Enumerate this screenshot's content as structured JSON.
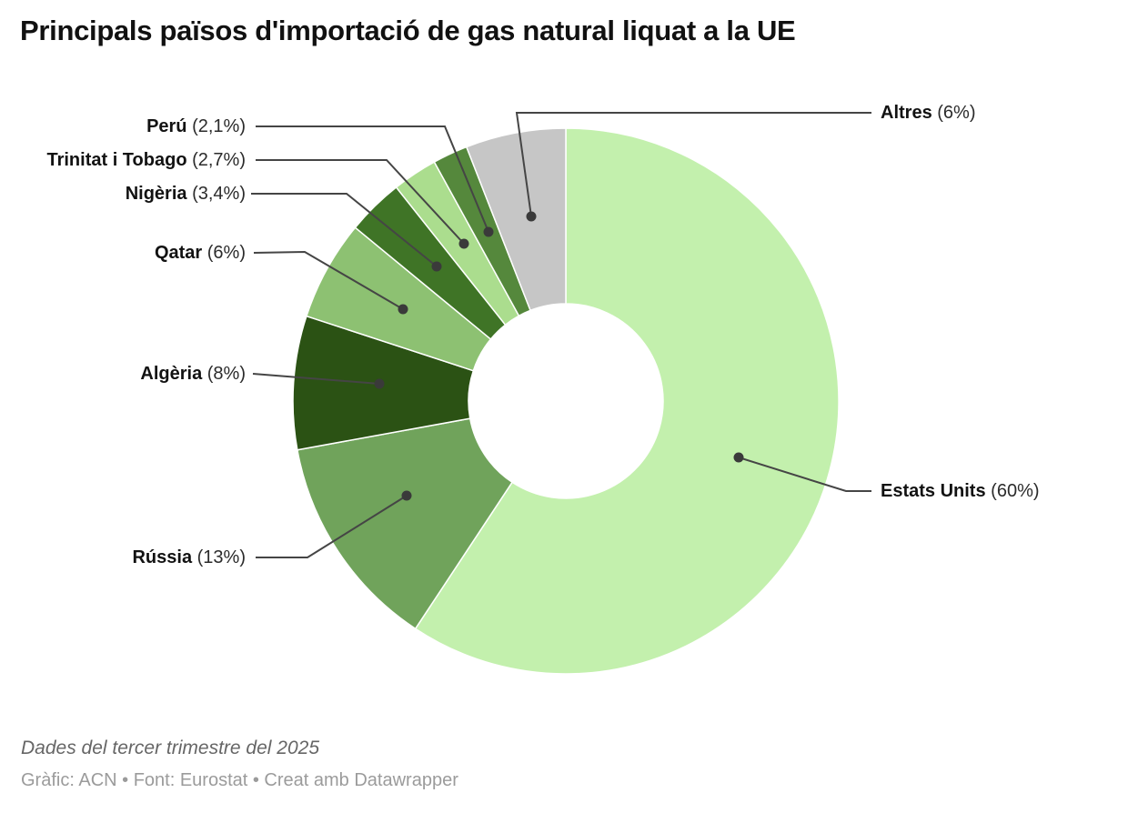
{
  "title": "Principals països d'importació de gas natural liquat a la UE",
  "chart_data": {
    "type": "pie",
    "subtype": "donut",
    "title": "Principals països d'importació de gas natural liquat a la UE",
    "unit": "%",
    "direction": "clockwise",
    "start_angle_deg": 0,
    "donut_hole_ratio": 0.36,
    "leader_line_color": "#454545",
    "separator_color": "#ffffff",
    "slices": [
      {
        "label": "Estats Units",
        "value": 60,
        "display": "(60%)",
        "color": "#c3f0ad"
      },
      {
        "label": "Rússia",
        "value": 13,
        "display": "(13%)",
        "color": "#70a35b"
      },
      {
        "label": "Algèria",
        "value": 8,
        "display": "(8%)",
        "color": "#2b5214"
      },
      {
        "label": "Qatar",
        "value": 6,
        "display": "(6%)",
        "color": "#8dc172"
      },
      {
        "label": "Nigèria",
        "value": 3.4,
        "display": "(3,4%)",
        "color": "#3f7426"
      },
      {
        "label": "Trinitat i Tobago",
        "value": 2.7,
        "display": "(2,7%)",
        "color": "#abdd8e"
      },
      {
        "label": "Perú",
        "value": 2.1,
        "display": "(2,1%)",
        "color": "#55883c"
      },
      {
        "label": "Altres",
        "value": 6,
        "display": "(6%)",
        "color": "#c6c6c6"
      }
    ]
  },
  "footer": {
    "note": "Dades del tercer trimestre del 2025",
    "byline": "Gràfic: ACN • Font: Eurostat • Creat amb Datawrapper"
  }
}
